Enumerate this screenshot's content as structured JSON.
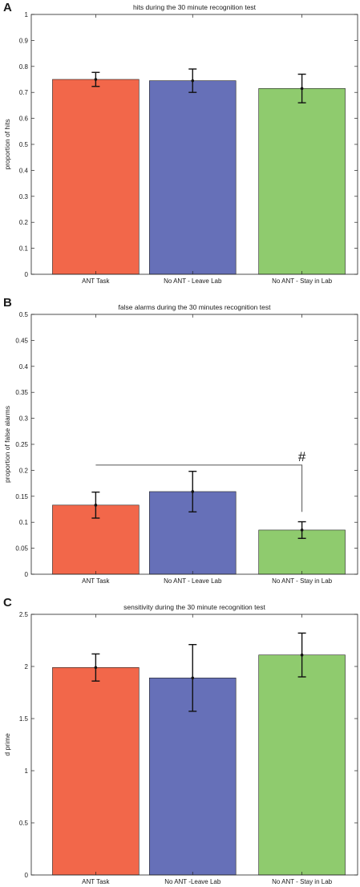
{
  "panel_letters": [
    "A",
    "B",
    "C"
  ],
  "colors": {
    "ANT Task": "#f2674a",
    "No ANT - Leave Lab": "#6670b8",
    "No ANT - Stay in Lab": "#8fcb6e"
  },
  "chart_data": [
    {
      "type": "bar",
      "title": "hits during the 30 minute recognition test",
      "ylabel": "proportion of hits",
      "xlabel": "",
      "categories": [
        "ANT Task",
        "No ANT - Leave Lab",
        "No ANT - Stay in Lab"
      ],
      "values": [
        0.75,
        0.745,
        0.715
      ],
      "errors": [
        0.027,
        0.045,
        0.055
      ],
      "ylim": [
        0,
        1
      ],
      "yticks": [
        "0",
        "0.1",
        "0.2",
        "0.3",
        "0.4",
        "0.5",
        "0.6",
        "0.7",
        "0.8",
        "0.9",
        "1"
      ],
      "annotation": null
    },
    {
      "type": "bar",
      "title": "false alarms during the 30 minutes recognition test",
      "ylabel": "proportion of false alarms",
      "xlabel": "",
      "categories": [
        "ANT Task",
        "No ANT - Leave Lab",
        "No ANT - Stay in Lab"
      ],
      "values": [
        0.133,
        0.159,
        0.085
      ],
      "errors": [
        0.025,
        0.039,
        0.016
      ],
      "ylim": [
        0,
        0.5
      ],
      "yticks": [
        "0",
        "0.05",
        "0.1",
        "0.15",
        "0.2",
        "0.25",
        "0.3",
        "0.35",
        "0.4",
        "0.45",
        "0.5"
      ],
      "annotation": {
        "label": "#",
        "from_category": 0,
        "to_category": 2,
        "y_level": 0.21,
        "y_end": 0.12
      }
    },
    {
      "type": "bar",
      "title": "sensitivity during the 30 minute recognition test",
      "ylabel": "d prime",
      "xlabel": "",
      "categories": [
        "ANT Task",
        "No ANT -Leave Lab",
        "No ANT - Stay in Lab"
      ],
      "values": [
        1.99,
        1.89,
        2.11
      ],
      "errors": [
        0.13,
        0.32,
        0.21
      ],
      "ylim": [
        0,
        2.5
      ],
      "yticks": [
        "0",
        "0.5",
        "1",
        "1.5",
        "2",
        "2.5"
      ],
      "annotation": null
    }
  ]
}
